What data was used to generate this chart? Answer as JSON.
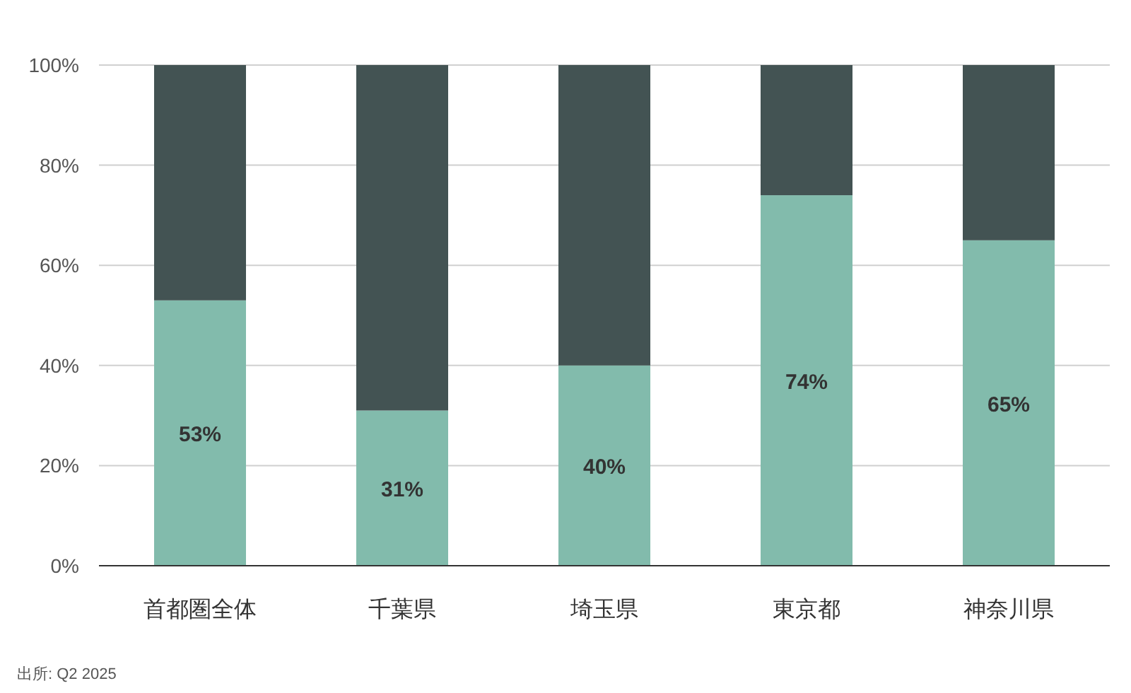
{
  "chart_data": {
    "type": "bar",
    "stacked": true,
    "categories": [
      "首都圏全体",
      "千葉県",
      "埼玉県",
      "東京都",
      "神奈川県"
    ],
    "series": [
      {
        "color": "#82bbac",
        "values": [
          53,
          31,
          40,
          74,
          65
        ],
        "value_labels": [
          "53%",
          "31%",
          "40%",
          "74%",
          "65%"
        ]
      },
      {
        "color": "#435353",
        "values": [
          47,
          69,
          60,
          26,
          35
        ]
      }
    ],
    "ylim": [
      0,
      100
    ],
    "yticks": [
      {
        "value": 0,
        "label": "0%"
      },
      {
        "value": 20,
        "label": "20%"
      },
      {
        "value": 40,
        "label": "40%"
      },
      {
        "value": 60,
        "label": "60%"
      },
      {
        "value": 80,
        "label": "80%"
      },
      {
        "value": 100,
        "label": "100%"
      }
    ],
    "grid": "y",
    "annotations": [
      "出所: Q2 2025"
    ]
  }
}
